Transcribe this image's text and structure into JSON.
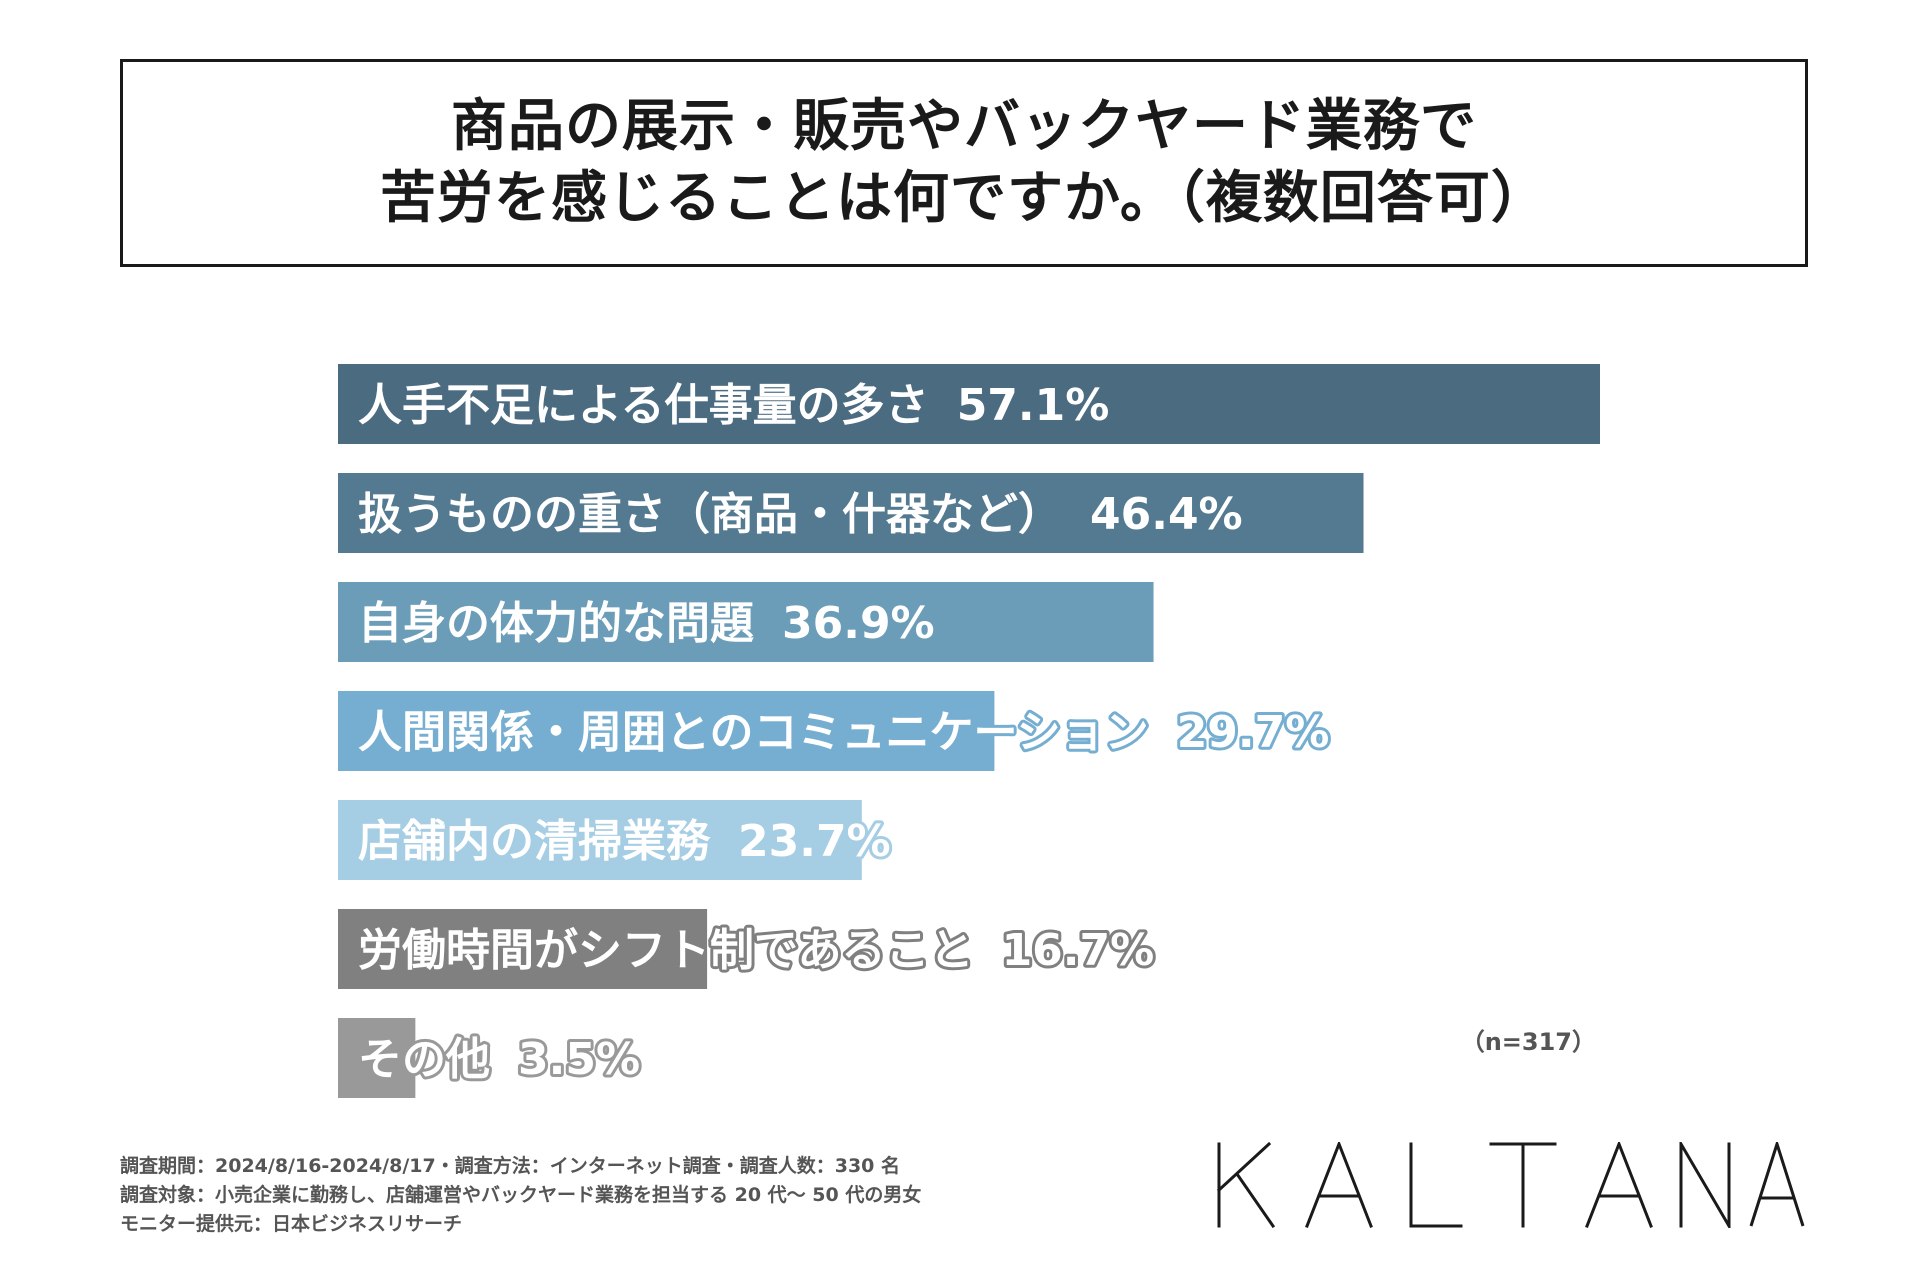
{
  "title": {
    "line1": "商品の展示・販売やバックヤード業務で",
    "line2": "苦労を感じることは何ですか。（複数回答可）"
  },
  "chart_data": {
    "type": "bar",
    "orientation": "horizontal",
    "categories": [
      "人手不足による仕事量の多さ",
      "扱うものの重さ（商品・什器など）",
      "自身の体力的な問題",
      "人間関係・周囲とのコミュニケーション",
      "店舗内の清掃業務",
      "労働時間がシフト制であること",
      "その他"
    ],
    "values": [
      57.1,
      46.4,
      36.9,
      29.7,
      23.7,
      16.7,
      3.5
    ],
    "value_labels": [
      "57.1%",
      "46.4%",
      "36.9%",
      "29.7%",
      "23.7%",
      "16.7%",
      "3.5%"
    ],
    "bar_colors": [
      "#4b6b81",
      "#547a91",
      "#6b9db9",
      "#75aed1",
      "#a5cde3",
      "#808080",
      "#999999"
    ],
    "xlim": [
      0,
      57.1
    ],
    "grid": false,
    "sample_size": "（n=317）"
  },
  "footnote": {
    "line1": "調査期間：2024/8/16-2024/8/17・調査方法：インターネット調査・調査人数：330 名",
    "line2": "調査対象：小売企業に勤務し、店舗運営やバックヤード業務を担当する 20 代〜 50 代の男女",
    "line3": "モニター提供元：日本ビジネスリサーチ"
  },
  "logo": {
    "text": "KALTANA"
  }
}
